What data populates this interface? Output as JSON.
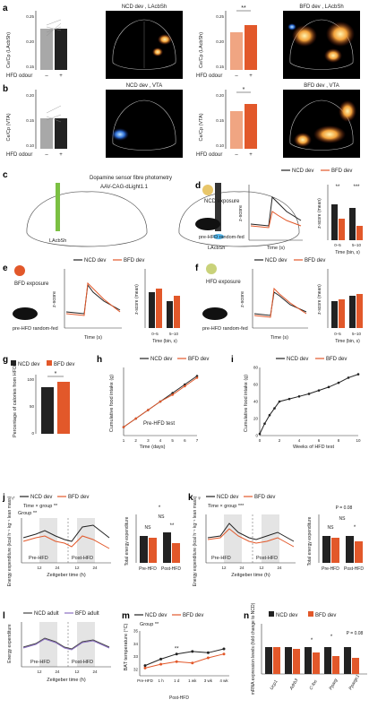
{
  "colors": {
    "ncd": "#222222",
    "bfd": "#e2582a",
    "bfd_light": "#f0a582",
    "grey": "#a8a8a8",
    "purple": "#8b6fc2"
  },
  "panel_a": {
    "label": "a",
    "ylabel": "Ce/Cp (LAcbSh)",
    "xaxis_label": "HFD odour",
    "left_title": "NCD dev , LAcbSh",
    "right_title": "BFD dev , LAcbSh",
    "sig": "**",
    "ticks": [
      "0.15",
      "0.20",
      "0.25"
    ],
    "minus": "–",
    "plus": "+"
  },
  "panel_b": {
    "label": "b",
    "ylabel": "Ce/Cp (VTA)",
    "xaxis_label": "HFD odour",
    "left_title": "NCD dev , VTA",
    "right_title": "BFD dev , VTA",
    "sig": "*",
    "ticks": [
      "0.10",
      "0.15",
      "0.20"
    ],
    "minus": "–",
    "plus": "+"
  },
  "panel_c": {
    "label": "c",
    "title": "Dopamine sensor fibre photometry",
    "virus": "AAV-CAG-dLight1.1",
    "region": "LAcbSh"
  },
  "panel_d": {
    "label": "d",
    "exposure": "NCD exposure",
    "state": "pre-HFD random-fed",
    "ylabel": "z-score",
    "xlabel": "Time (s)",
    "bar_ylabel": "z-score (mean)",
    "bar_xlabel": "Time (bin, s)",
    "bins": [
      "0–5",
      "5–10"
    ],
    "sig1": "**",
    "sig2": "***"
  },
  "panel_e": {
    "label": "e",
    "exposure": "BFD exposure",
    "state": "pre-HFD random-fed",
    "ylabel": "z-score",
    "xlabel": "Time (s)",
    "bar_ylabel": "z-score (mean)",
    "bar_xlabel": "Time (bin, s)",
    "bins": [
      "0–5",
      "5–10"
    ]
  },
  "panel_f": {
    "label": "f",
    "exposure": "HFD exposure",
    "state": "pre-HFD random-fed",
    "ylabel": "z-score",
    "xlabel": "Time (s)",
    "bar_ylabel": "z-score (mean)",
    "bar_xlabel": "Time (bin, s)",
    "bins": [
      "0–5",
      "5–10"
    ]
  },
  "legend": {
    "ncd": "NCD dev",
    "bfd": "BFD dev",
    "ncd_adult": "NCD adult",
    "bfd_adult": "BFD adult"
  },
  "panel_g": {
    "label": "g",
    "ylabel": "Percentage of calories from HFD",
    "sig": "*",
    "ticks": [
      "0",
      "50",
      "100"
    ]
  },
  "panel_h": {
    "label": "h",
    "ylabel": "Cumulative food intake (g)",
    "xlabel": "Time (days)",
    "annot": "Pre-HFD test",
    "x_ticks": [
      "1",
      "2",
      "3",
      "4",
      "5",
      "6",
      "7"
    ]
  },
  "panel_i": {
    "label": "i",
    "ylabel": "Cumulative food intake (g)",
    "xlabel": "Weeks of HFD test",
    "x_ticks": [
      "0",
      "2",
      "4",
      "6",
      "8",
      "10"
    ],
    "y_ticks": [
      "0",
      "20",
      "40",
      "60",
      "80"
    ]
  },
  "panel_j": {
    "label": "j",
    "sex": "♂",
    "stats1": "Time × group **",
    "stats2": "Group **",
    "ylabel": "Energy expenditure (kcal h⁻¹ kg⁻¹ lean mass)",
    "xlabel": "Zeitgeber time (h)",
    "pre": "Pre-HFD",
    "post": "Post-HFD",
    "bar_ylabel": "Total energy expenditure",
    "ns": "NS",
    "star": "*",
    "dstar": "**",
    "x_ticks": [
      "12",
      "24",
      "12",
      "24"
    ]
  },
  "panel_k": {
    "label": "k",
    "sex": "♀",
    "stats1": "Time × group ***",
    "ylabel": "Energy expenditure (kcal h⁻¹ kg⁻¹ lean mass)",
    "xlabel": "Zeitgeber time (h)",
    "pre": "Pre-HFD",
    "post": "Post-HFD",
    "bar_ylabel": "Total energy expenditure",
    "p_value": "P = 0.08",
    "ns": "NS",
    "star": "*",
    "x_ticks": [
      "12",
      "24",
      "12",
      "24"
    ]
  },
  "panel_l": {
    "label": "l",
    "ylabel": "Energy expenditure",
    "xlabel": "Zeitgeber time (h)",
    "pre": "Pre-HFD",
    "post": "Post-HFD",
    "x_ticks": [
      "12",
      "24",
      "12",
      "24"
    ]
  },
  "panel_m": {
    "label": "m",
    "ylabel": "BAT temperature (°C)",
    "stats": "Group **",
    "sig": "**",
    "x_ticks": [
      "Pre-HFD",
      "1 h",
      "1 d",
      "1 wk",
      "3 wk",
      "4 wk"
    ],
    "post": "Post-HFD",
    "y_ticks": [
      "32",
      "33",
      "34",
      "35"
    ]
  },
  "panel_n": {
    "label": "n",
    "ylabel": "mRNA expression levels (fold change to NCD)",
    "genes": [
      "Ucp1",
      "Adrb3",
      "C-fos",
      "Pparg",
      "Ppargc1"
    ],
    "star": "*",
    "p_value": "P = 0.08"
  },
  "chart_data": [
    {
      "type": "line",
      "id": "h",
      "title": "",
      "xlabel": "Time (days)",
      "ylabel": "Cumulative food intake (g)",
      "x": [
        1,
        2,
        3,
        4,
        5,
        6,
        7
      ],
      "series": [
        {
          "name": "NCD dev",
          "values": [
            5,
            10,
            15,
            20,
            25,
            30,
            35
          ]
        },
        {
          "name": "BFD dev",
          "values": [
            5,
            10,
            15,
            20,
            24,
            29,
            34
          ]
        }
      ]
    },
    {
      "type": "line",
      "id": "i",
      "title": "",
      "xlabel": "Weeks of HFD test",
      "ylabel": "Cumulative food intake (g)",
      "x": [
        0,
        0.5,
        1,
        1.5,
        2,
        3,
        4,
        5,
        6,
        7,
        8,
        9,
        10
      ],
      "series": [
        {
          "name": "NCD dev",
          "values": [
            2,
            14,
            24,
            32,
            40,
            43,
            46,
            49,
            53,
            57,
            62,
            68,
            72
          ]
        }
      ]
    },
    {
      "type": "line",
      "id": "m",
      "title": "",
      "xlabel": "Post-HFD",
      "ylabel": "BAT temperature (°C)",
      "categories": [
        "Pre-HFD",
        "1 h",
        "1 d",
        "1 wk",
        "3 wk",
        "4 wk"
      ],
      "series": [
        {
          "name": "NCD dev",
          "values": [
            32.3,
            32.8,
            33.2,
            33.4,
            33.3,
            33.6
          ]
        },
        {
          "name": "BFD dev",
          "values": [
            32.1,
            32.4,
            32.6,
            32.5,
            32.9,
            33.2
          ]
        }
      ],
      "ylim": [
        31.5,
        35
      ]
    }
  ]
}
